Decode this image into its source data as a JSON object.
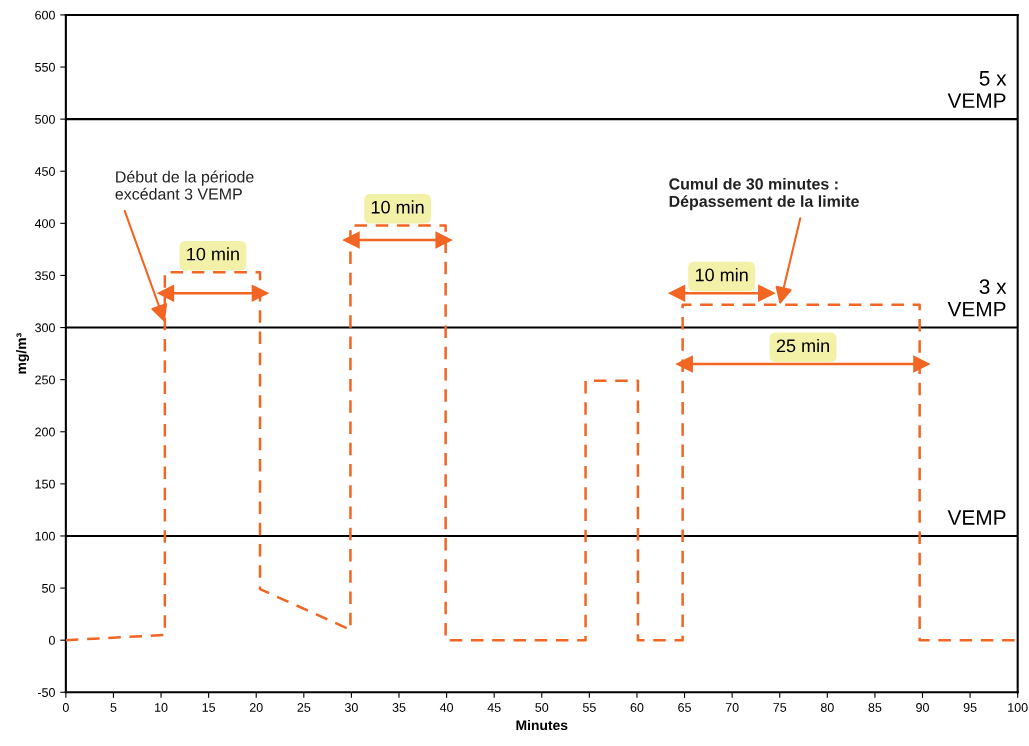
{
  "chart_data": {
    "type": "line",
    "xlabel": "Minutes",
    "ylabel": "mg/m³",
    "xlim": [
      0,
      100
    ],
    "xticks": [
      0,
      5,
      10,
      15,
      20,
      25,
      30,
      35,
      40,
      45,
      50,
      55,
      60,
      65,
      70,
      75,
      80,
      85,
      90,
      95,
      100
    ],
    "ylim": [
      -50,
      600
    ],
    "yticks": [
      -50,
      0,
      50,
      100,
      150,
      200,
      250,
      300,
      350,
      400,
      450,
      500,
      550,
      600
    ],
    "grid": false,
    "legend": false,
    "line_style": "dashed",
    "marker": "none",
    "series": [
      {
        "color": "#f26522",
        "x": [
          0,
          10.4,
          10.4,
          20.4,
          20.4,
          29.9,
          29.9,
          39.9,
          39.9,
          54.6,
          54.6,
          60.1,
          60.1,
          64.8,
          64.8,
          89.7,
          89.7,
          100
        ],
        "values": [
          0,
          5,
          353,
          353,
          49,
          10,
          398,
          398,
          0,
          0,
          249,
          249,
          0,
          0,
          322,
          322,
          0,
          0
        ]
      },
      {
        "name": "10 min",
        "color": "#f26522",
        "line_style": "solid",
        "marker": "triangle",
        "x": [
          10.5,
          20.4
        ],
        "values": [
          333,
          333
        ]
      },
      {
        "name": "10 min",
        "color": "#f26522",
        "line_style": "solid",
        "marker": "triangle",
        "x": [
          30,
          39.7
        ],
        "values": [
          384,
          384
        ]
      },
      {
        "name": "10 min",
        "color": "#f26522",
        "line_style": "solid",
        "marker": "triangle",
        "x": [
          64.2,
          73.6
        ],
        "values": [
          333,
          333
        ]
      },
      {
        "name": "25 min",
        "color": "#f26522",
        "line_style": "solid",
        "marker": "triangle",
        "x": [
          65,
          89.9
        ],
        "values": [
          265,
          265
        ]
      }
    ],
    "ref_lines": [
      {
        "axis": "y",
        "value": 100,
        "label": "VEMP",
        "color": "#000000"
      },
      {
        "axis": "y",
        "value": 300,
        "label": "3 x\nVEMP",
        "color": "#000000"
      },
      {
        "axis": "y",
        "value": 500,
        "label": "5 x\nVEMP",
        "color": "#000000"
      }
    ],
    "annotations": [
      {
        "text": "Début de la période\nexcédant 3 VEMP",
        "x": 10.4,
        "y": 305
      },
      {
        "text": "Cumul de 30 minutes :\nDépassement de la limite",
        "x": 75,
        "y": 322
      }
    ]
  }
}
